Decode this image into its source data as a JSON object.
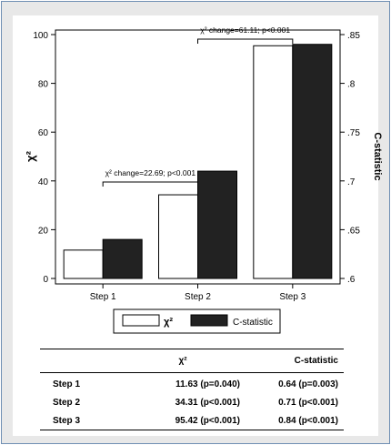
{
  "chart_data": {
    "type": "bar",
    "categories": [
      "Step 1",
      "Step 2",
      "Step 3"
    ],
    "series": [
      {
        "name": "χ²",
        "axis": "left",
        "color": "#ffffff",
        "values": [
          11.63,
          34.31,
          95.42
        ]
      },
      {
        "name": "C-statistic",
        "axis": "right",
        "color": "#222222",
        "values": [
          0.64,
          0.71,
          0.84
        ]
      }
    ],
    "ylabel": "χ²",
    "y2label": "C-statistic",
    "ylim": [
      0,
      100
    ],
    "yticks": [
      0,
      20,
      40,
      60,
      80,
      100
    ],
    "y2lim": [
      0.6,
      0.85
    ],
    "y2ticks": [
      ".6",
      ".65",
      ".7",
      ".75",
      ".8",
      ".85"
    ],
    "grid": false,
    "legend": "bottom",
    "annotations": [
      {
        "text": "χ² change=22.69; p<0.001",
        "from": "Step 1",
        "to": "Step 2"
      },
      {
        "text": "χ² change=61.11; p<0.001",
        "from": "Step 2",
        "to": "Step 3"
      }
    ]
  },
  "table": {
    "headers": [
      "",
      "χ²",
      "C-statistic"
    ],
    "rows": [
      [
        "Step 1",
        "11.63 (p=0.040)",
        "0.64 (p=0.003)"
      ],
      [
        "Step 2",
        "34.31 (p<0.001)",
        "0.71 (p<0.001)"
      ],
      [
        "Step 3",
        "95.42 (p<0.001)",
        "0.84 (p<0.001)"
      ]
    ]
  }
}
